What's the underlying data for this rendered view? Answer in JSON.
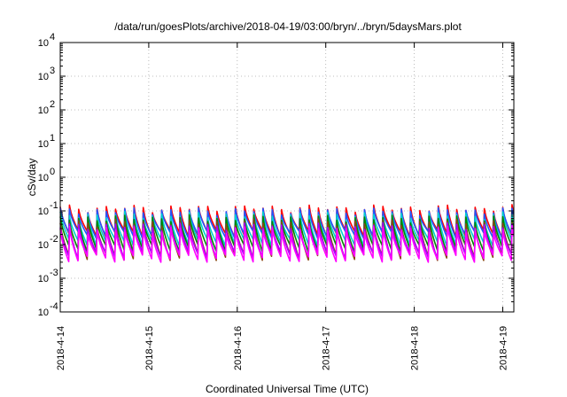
{
  "chart_data": {
    "type": "line",
    "title": "/data/run/goesPlots/archive/2018-04-19/03:00/bryn/../bryn/5daysMars.plot",
    "xlabel": "Coordinated Universal Time (UTC)",
    "ylabel": "cSv/day",
    "yscale": "log",
    "ylim": [
      0.0001,
      10000
    ],
    "xlim": [
      "2018-04-14",
      "2018-04-19 03:00"
    ],
    "grid": true,
    "y_ticks": [
      {
        "value": 0.0001,
        "mantissa": "10",
        "exp": "-4"
      },
      {
        "value": 0.001,
        "mantissa": "10",
        "exp": "-3"
      },
      {
        "value": 0.01,
        "mantissa": "10",
        "exp": "-2"
      },
      {
        "value": 0.1,
        "mantissa": "10",
        "exp": "-1"
      },
      {
        "value": 1,
        "mantissa": "10",
        "exp": "0"
      },
      {
        "value": 10,
        "mantissa": "10",
        "exp": "1"
      },
      {
        "value": 100,
        "mantissa": "10",
        "exp": "2"
      },
      {
        "value": 1000,
        "mantissa": "10",
        "exp": "3"
      },
      {
        "value": 10000,
        "mantissa": "10",
        "exp": "4"
      }
    ],
    "x_ticks": [
      {
        "day": 0,
        "label": "2018-4-14"
      },
      {
        "day": 1,
        "label": "2018-4-15"
      },
      {
        "day": 2,
        "label": "2018-4-16"
      },
      {
        "day": 3,
        "label": "2018-4-17"
      },
      {
        "day": 4,
        "label": "2018-4-18"
      },
      {
        "day": 5,
        "label": "2018-4-19"
      }
    ],
    "cycle_hours": 2.5,
    "series": [
      {
        "color": "#ff0000",
        "peak": 0.12,
        "trough": 0.022
      },
      {
        "color": "#2255ff",
        "peak": 0.1,
        "trough": 0.02
      },
      {
        "color": "#00d0d0",
        "peak": 0.075,
        "trough": 0.012
      },
      {
        "color": "#008800",
        "peak": 0.06,
        "trough": 0.008
      },
      {
        "color": "#8b4513",
        "peak": 0.045,
        "trough": 0.0045
      },
      {
        "color": "#aa00ff",
        "peak": 0.035,
        "trough": 0.005
      },
      {
        "color": "#ff00ff",
        "peak": 0.028,
        "trough": 0.004
      }
    ]
  }
}
